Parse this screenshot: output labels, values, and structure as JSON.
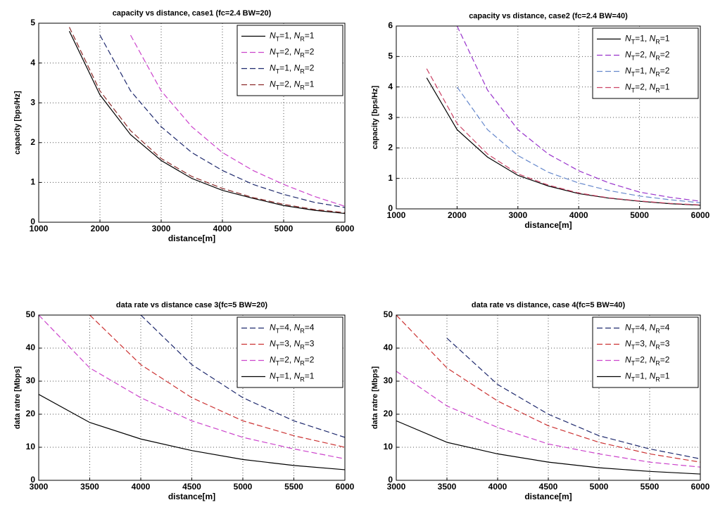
{
  "chart_data": [
    {
      "type": "line",
      "title": "capacity vs distance, case1 (fc=2.4 BW=20)",
      "x_label": "distance[m]",
      "y_label": "capacity [bps/Hz]",
      "x": [
        1000,
        1500,
        2000,
        2500,
        3000,
        3500,
        4000,
        4500,
        5000,
        5500,
        6000
      ],
      "xlim": [
        1000,
        6000
      ],
      "ylim": [
        0,
        5
      ],
      "xticks": [
        1000,
        2000,
        3000,
        4000,
        5000,
        6000
      ],
      "yticks": [
        0,
        1,
        2,
        3,
        4,
        5
      ],
      "grid": true,
      "legend": "upper right",
      "series": [
        {
          "name": "NT=1, NR=1",
          "color": "#000000",
          "dashed": false,
          "values": [
            null,
            4.8,
            3.2,
            2.2,
            1.55,
            1.1,
            0.8,
            0.6,
            0.42,
            0.3,
            0.22
          ]
        },
        {
          "name": "NT=2, NR=2",
          "color": "#cc44cc",
          "dashed": true,
          "values": [
            null,
            null,
            null,
            4.7,
            3.3,
            2.4,
            1.75,
            1.3,
            0.95,
            0.65,
            0.4
          ]
        },
        {
          "name": "NT=1, NR=2",
          "color": "#1f2a6e",
          "dashed": true,
          "values": [
            null,
            null,
            4.7,
            3.3,
            2.4,
            1.75,
            1.3,
            0.95,
            0.7,
            0.5,
            0.37
          ]
        },
        {
          "name": "NT=2, NR=1",
          "color": "#8b2a2a",
          "dashed": true,
          "values": [
            null,
            4.9,
            3.3,
            2.3,
            1.6,
            1.15,
            0.85,
            0.62,
            0.45,
            0.32,
            0.24
          ]
        }
      ]
    },
    {
      "type": "line",
      "title": "capacity vs distance, case2 (fc=2.4 BW=40)",
      "x_label": "distance[m]",
      "y_label": "capacity [bps/Hz]",
      "x": [
        1000,
        1500,
        2000,
        2500,
        3000,
        3500,
        4000,
        4500,
        5000,
        5500,
        6000
      ],
      "xlim": [
        1000,
        6000
      ],
      "ylim": [
        0,
        6
      ],
      "xticks": [
        1000,
        2000,
        3000,
        4000,
        5000,
        6000
      ],
      "yticks": [
        0,
        1,
        2,
        3,
        4,
        5,
        6
      ],
      "grid": true,
      "legend": "upper right",
      "series": [
        {
          "name": "NT=1, NR=1",
          "color": "#000000",
          "dashed": false,
          "values": [
            null,
            4.3,
            2.6,
            1.7,
            1.1,
            0.75,
            0.5,
            0.35,
            0.25,
            0.17,
            0.12
          ]
        },
        {
          "name": "NT=2, NR=2",
          "color": "#9933cc",
          "dashed": true,
          "values": [
            null,
            null,
            6,
            3.9,
            2.6,
            1.8,
            1.25,
            0.85,
            0.55,
            0.38,
            0.25
          ]
        },
        {
          "name": "NT=1, NR=2",
          "color": "#6688cc",
          "dashed": true,
          "values": [
            null,
            null,
            4.0,
            2.6,
            1.75,
            1.2,
            0.85,
            0.6,
            0.42,
            0.3,
            0.2
          ]
        },
        {
          "name": "NT=2, NR=1",
          "color": "#cc4466",
          "dashed": true,
          "values": [
            null,
            4.6,
            2.8,
            1.8,
            1.15,
            0.78,
            0.52,
            0.36,
            0.26,
            0.18,
            0.13
          ]
        }
      ]
    },
    {
      "type": "line",
      "title": "data rate vs distance case 3(fc=5 BW=20)",
      "x_label": "distance[m]",
      "y_label": "data ratre [Mbps]",
      "x": [
        3000,
        3500,
        4000,
        4500,
        5000,
        5500,
        6000
      ],
      "xlim": [
        3000,
        6000
      ],
      "ylim": [
        0,
        50
      ],
      "xticks": [
        3000,
        3500,
        4000,
        4500,
        5000,
        5500,
        6000
      ],
      "yticks": [
        0,
        10,
        20,
        30,
        40,
        50
      ],
      "grid": true,
      "legend": "upper right",
      "series": [
        {
          "name": "NT=4, NR=4",
          "color": "#1f2a6e",
          "dashed": true,
          "values": [
            null,
            null,
            50,
            35,
            25,
            18,
            13
          ]
        },
        {
          "name": "NT=3, NR=3",
          "color": "#cc3333",
          "dashed": true,
          "values": [
            null,
            50,
            35,
            25,
            18,
            13.5,
            10
          ]
        },
        {
          "name": "NT=2, NR=2",
          "color": "#cc44cc",
          "dashed": true,
          "values": [
            50,
            34,
            25,
            18,
            13,
            9.5,
            6.5
          ]
        },
        {
          "name": "NT=1, NR=1",
          "color": "#000000",
          "dashed": false,
          "values": [
            26,
            17.5,
            12.5,
            9,
            6.3,
            4.5,
            3.2
          ]
        }
      ]
    },
    {
      "type": "line",
      "title": "data rate vs distance, case 4(fc=5 BW=40)",
      "x_label": "distance[m]",
      "y_label": "data ratre [Mbps]",
      "x": [
        3000,
        3500,
        4000,
        4500,
        5000,
        5500,
        6000
      ],
      "xlim": [
        3000,
        6000
      ],
      "ylim": [
        0,
        50
      ],
      "xticks": [
        3000,
        3500,
        4000,
        4500,
        5000,
        5500,
        6000
      ],
      "yticks": [
        0,
        10,
        20,
        30,
        40,
        50
      ],
      "grid": true,
      "legend": "upper right",
      "series": [
        {
          "name": "NT=4, NR=4",
          "color": "#1f2a6e",
          "dashed": true,
          "values": [
            null,
            43,
            29,
            20,
            13.5,
            9.5,
            6.5
          ]
        },
        {
          "name": "NT=3, NR=3",
          "color": "#cc3333",
          "dashed": true,
          "values": [
            50,
            34,
            24,
            16.5,
            11.5,
            8,
            5.5
          ]
        },
        {
          "name": "NT=2, NR=2",
          "color": "#cc44cc",
          "dashed": true,
          "values": [
            33,
            22.5,
            16,
            11,
            8,
            5.5,
            4
          ]
        },
        {
          "name": "NT=1, NR=1",
          "color": "#000000",
          "dashed": false,
          "values": [
            18,
            11.5,
            8,
            5.5,
            3.8,
            2.7,
            1.9
          ]
        }
      ]
    }
  ]
}
